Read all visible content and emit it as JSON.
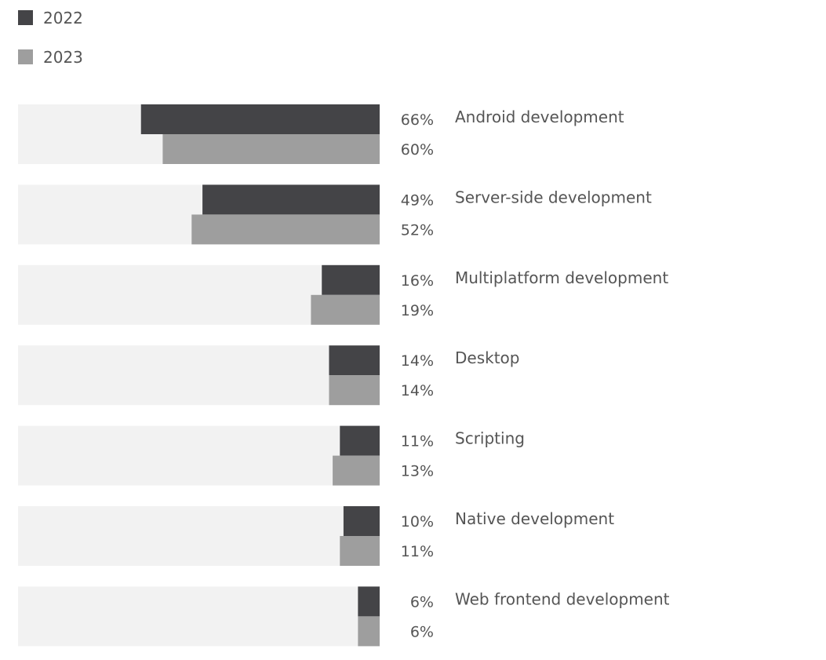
{
  "colors": {
    "series_2022": "#444447",
    "series_2023": "#9e9e9e",
    "track": "#f2f2f2",
    "text": "#555555"
  },
  "legend": [
    {
      "label": "2022",
      "color": "#444447"
    },
    {
      "label": "2023",
      "color": "#9e9e9e"
    }
  ],
  "chart_data": {
    "type": "bar",
    "orientation": "horizontal",
    "direction": "right-to-left",
    "categories": [
      "Android development",
      "Server-side development",
      "Multiplatform development",
      "Desktop",
      "Scripting",
      "Native development",
      "Web frontend development"
    ],
    "series": [
      {
        "name": "2022",
        "values": [
          66,
          49,
          16,
          14,
          11,
          10,
          6
        ],
        "labels": [
          "66%",
          "49%",
          "16%",
          "14%",
          "11%",
          "10%",
          "6%"
        ]
      },
      {
        "name": "2023",
        "values": [
          60,
          52,
          19,
          14,
          13,
          11,
          6
        ],
        "labels": [
          "60%",
          "52%",
          "19%",
          "14%",
          "13%",
          "11%",
          "6%"
        ]
      }
    ],
    "xlim": [
      0,
      100
    ],
    "unit": "%",
    "legend_position": "top-left",
    "grid": false
  }
}
